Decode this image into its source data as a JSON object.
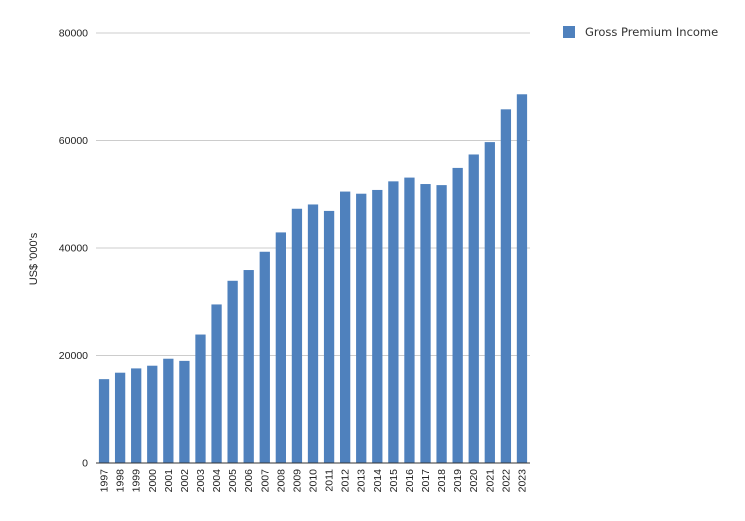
{
  "chart_data": {
    "type": "bar",
    "categories": [
      "1997",
      "1998",
      "1999",
      "2000",
      "2001",
      "2002",
      "2003",
      "2004",
      "2005",
      "2006",
      "2007",
      "2008",
      "2009",
      "2010",
      "2011",
      "2012",
      "2013",
      "2014",
      "2015",
      "2016",
      "2017",
      "2018",
      "2019",
      "2020",
      "2021",
      "2022",
      "2023"
    ],
    "series": [
      {
        "name": "Gross Premium Income",
        "color": "#4f81bd",
        "values": [
          15600,
          16800,
          17600,
          18100,
          19400,
          19000,
          23900,
          29500,
          33900,
          35900,
          39300,
          42900,
          47300,
          48100,
          46900,
          50500,
          50100,
          50800,
          52400,
          53100,
          51900,
          51700,
          54900,
          57400,
          59700,
          65800,
          68600
        ]
      }
    ],
    "ylabel": "US$ '000's",
    "ylim": [
      0,
      80000
    ],
    "yticks": [
      "0",
      "20000",
      "40000",
      "60000",
      "80000"
    ],
    "grid": true,
    "legend_position": "top-right"
  }
}
